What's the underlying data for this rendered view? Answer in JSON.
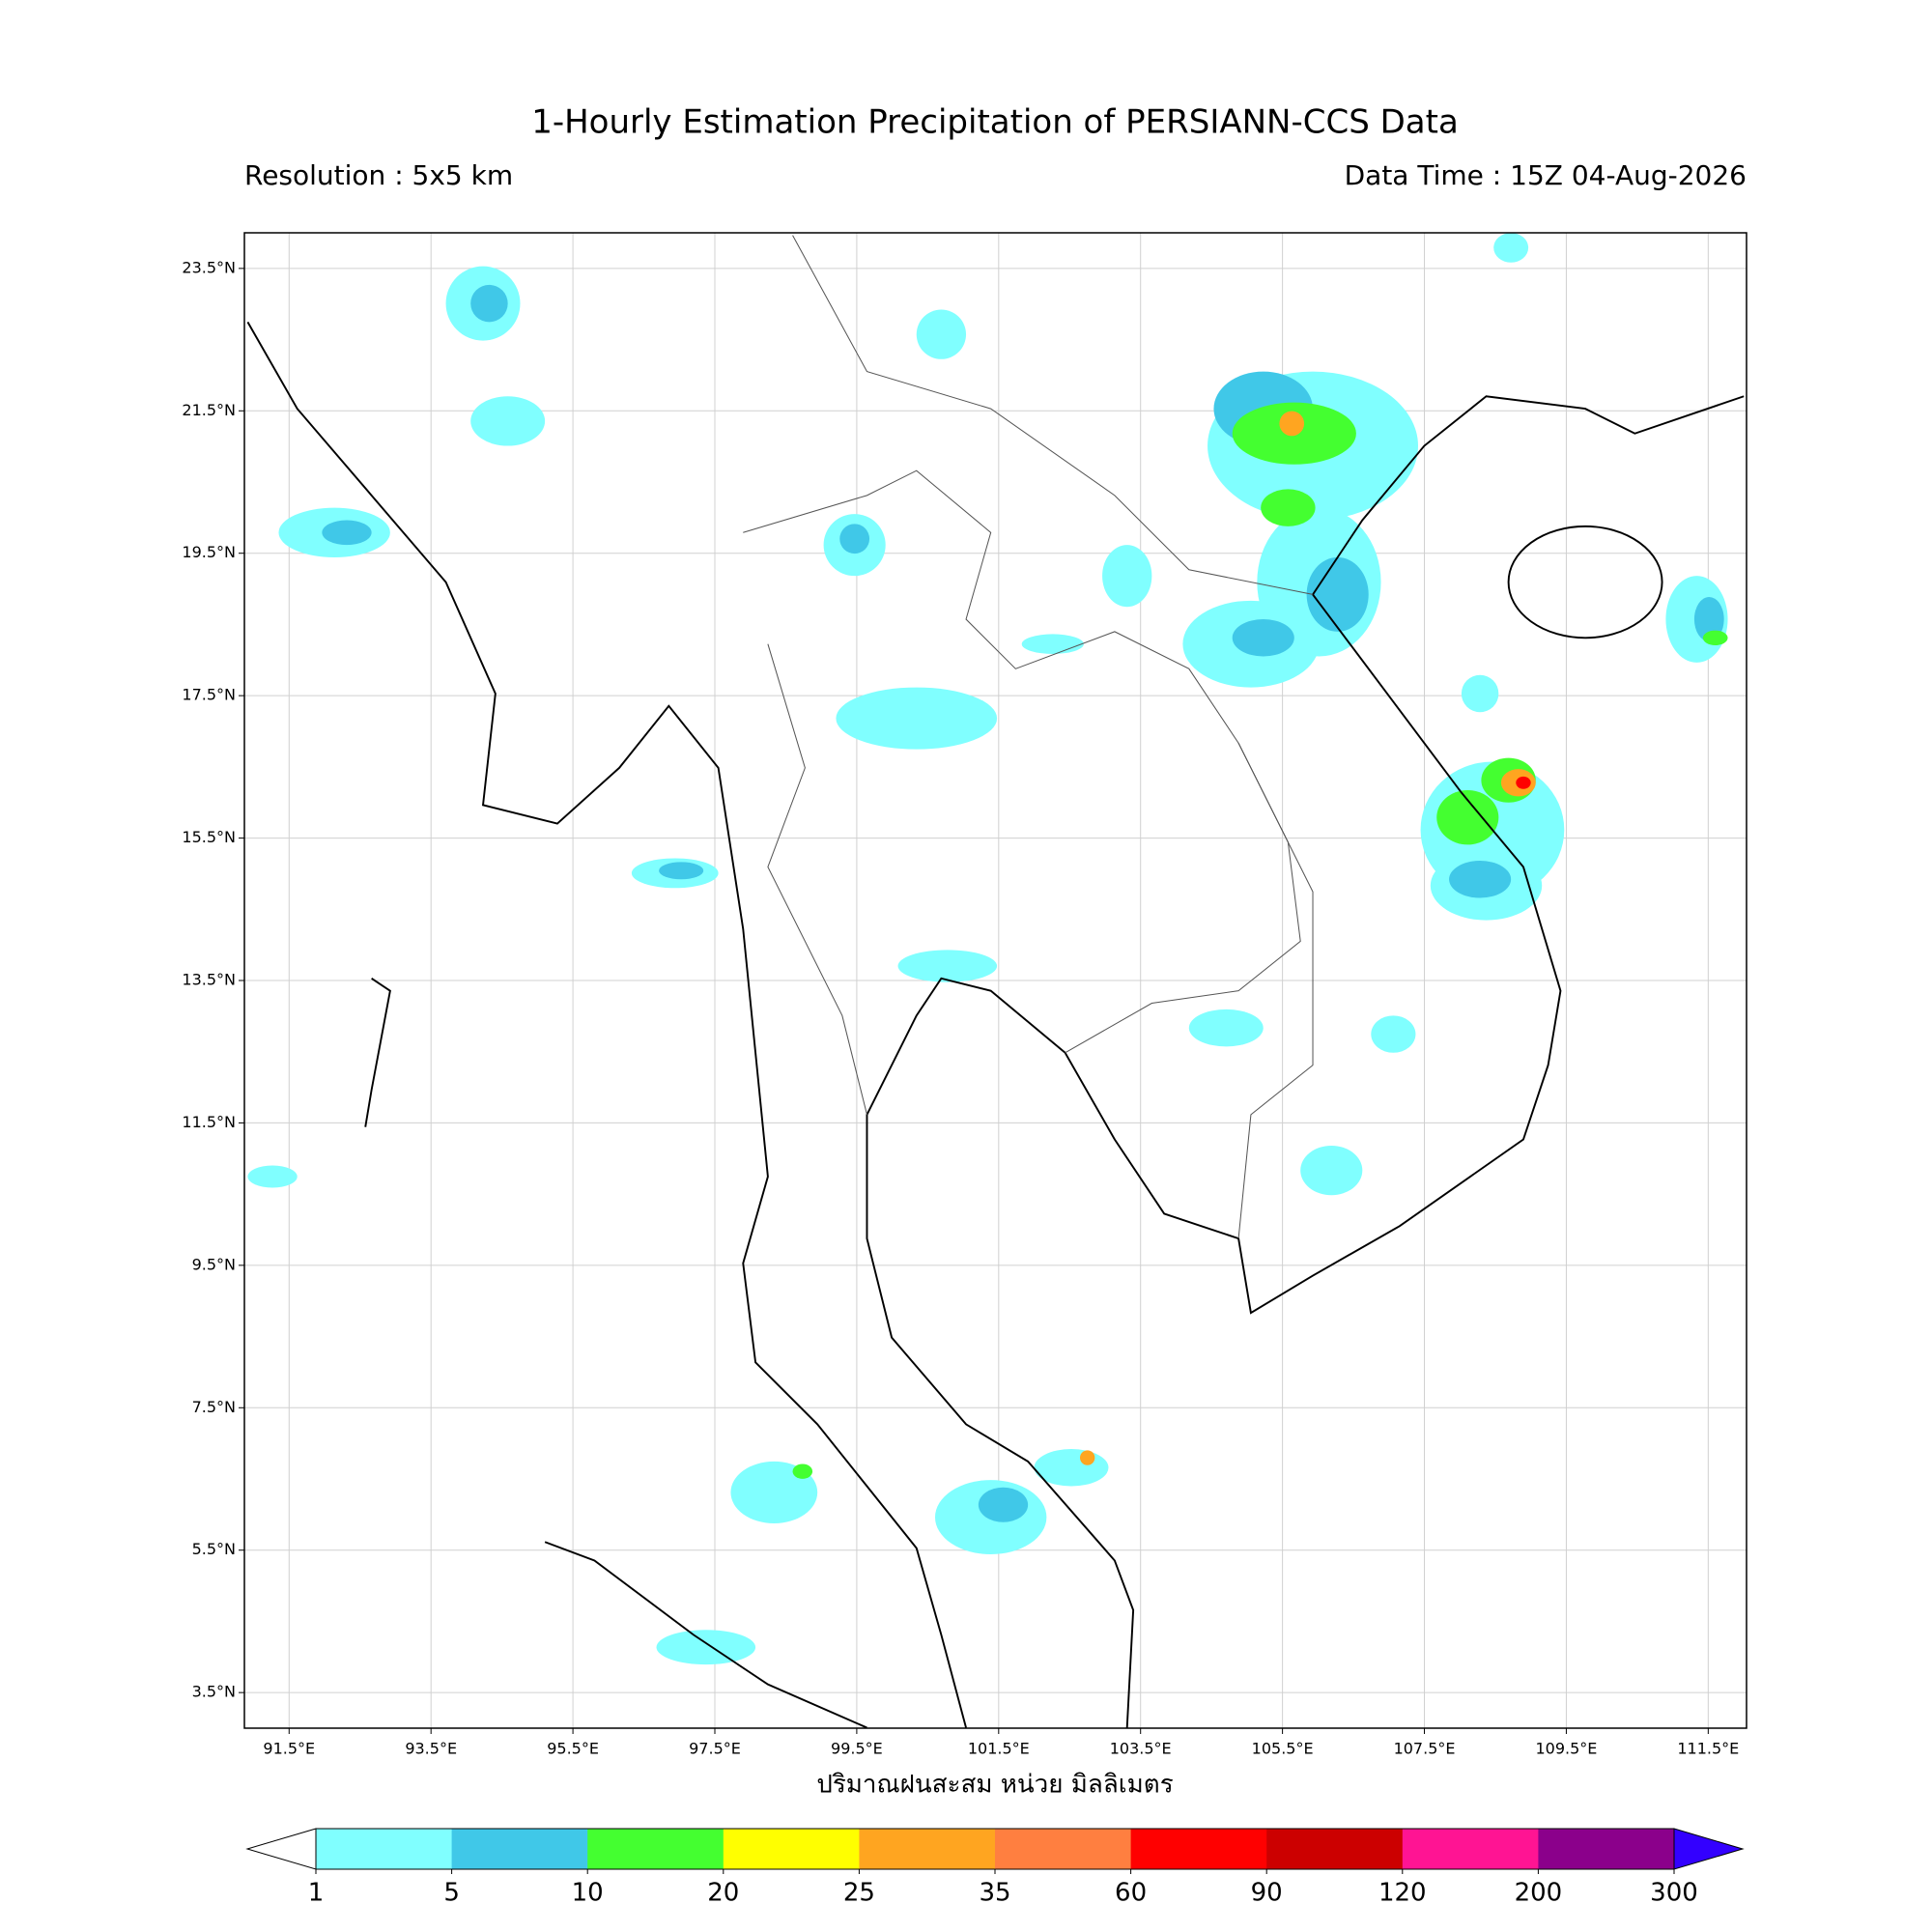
{
  "title": "1-Hourly Estimation Precipitation of PERSIANN-CCS Data",
  "resolution": "Resolution : 5x5 km",
  "data_time": "Data Time : 15Z 04-Aug-2026",
  "x_label": "ปริมาณฝนสะสม หน่วย มิลลิเมตร",
  "map": {
    "xlim": [
      90.87,
      112.04
    ],
    "ylim": [
      3.0,
      24.0
    ],
    "grid": true,
    "xticks": [
      {
        "value": 91.5,
        "label": "91.5°E"
      },
      {
        "value": 93.5,
        "label": "93.5°E"
      },
      {
        "value": 95.5,
        "label": "95.5°E"
      },
      {
        "value": 97.5,
        "label": "97.5°E"
      },
      {
        "value": 99.5,
        "label": "99.5°E"
      },
      {
        "value": 101.5,
        "label": "101.5°E"
      },
      {
        "value": 103.5,
        "label": "103.5°E"
      },
      {
        "value": 105.5,
        "label": "105.5°E"
      },
      {
        "value": 107.5,
        "label": "107.5°E"
      },
      {
        "value": 109.5,
        "label": "109.5°E"
      },
      {
        "value": 111.5,
        "label": "111.5°E"
      }
    ],
    "yticks": [
      {
        "value": 23.5,
        "label": "23.5°N"
      },
      {
        "value": 21.5,
        "label": "21.5°N"
      },
      {
        "value": 19.5,
        "label": "19.5°N"
      },
      {
        "value": 17.5,
        "label": "17.5°N"
      },
      {
        "value": 15.5,
        "label": "15.5°N"
      },
      {
        "value": 13.5,
        "label": "13.5°N"
      },
      {
        "value": 11.5,
        "label": "11.5°N"
      },
      {
        "value": 9.5,
        "label": "9.5°N"
      },
      {
        "value": 7.5,
        "label": "7.5°N"
      },
      {
        "value": 5.5,
        "label": "5.5°N"
      },
      {
        "value": 3.5,
        "label": "3.5°N"
      }
    ]
  },
  "colorbar": {
    "levels": [
      1,
      5,
      10,
      20,
      25,
      35,
      60,
      90,
      120,
      200,
      300
    ],
    "colors": [
      "#80ffff",
      "#40c8e8",
      "#44ff30",
      "#ffff00",
      "#ffa520",
      "#ff7f40",
      "#ff0000",
      "#cc0000",
      "#ff1493",
      "#8b008b"
    ],
    "under_color": "#ffffff",
    "over_color": "#3300ff"
  }
}
